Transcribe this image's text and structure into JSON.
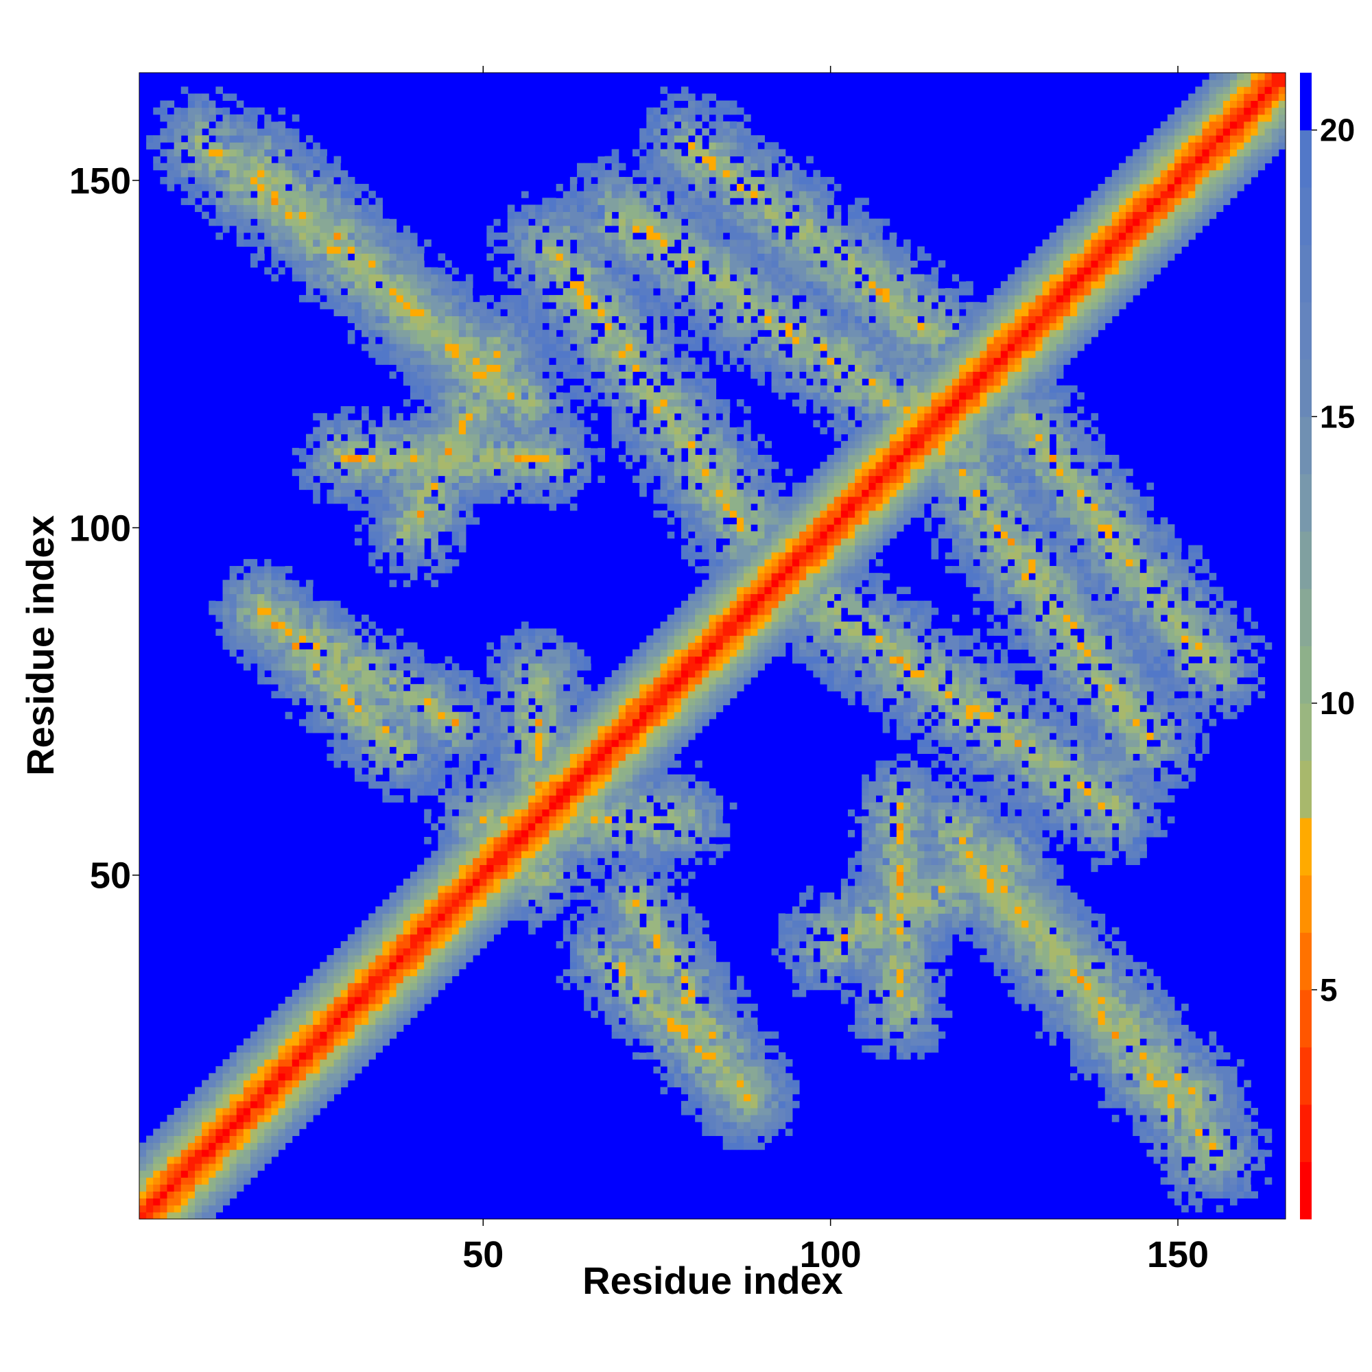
{
  "chart_data": {
    "type": "heatmap",
    "title": "",
    "xlabel": "Residue index",
    "ylabel": "Residue index",
    "n_residues": 165,
    "xlim": [
      1,
      165
    ],
    "ylim": [
      1,
      165
    ],
    "x_ticks": [
      50,
      100,
      150
    ],
    "y_ticks": [
      50,
      100,
      150
    ],
    "colorbar": {
      "range": [
        1,
        21
      ],
      "ticks": [
        5,
        10,
        15,
        20
      ],
      "levels": [
        {
          "max": 2,
          "color": "#ff0000"
        },
        {
          "max": 3,
          "color": "#ff1c00"
        },
        {
          "max": 4,
          "color": "#ff3a00"
        },
        {
          "max": 5,
          "color": "#ff5600"
        },
        {
          "max": 6,
          "color": "#ff7200"
        },
        {
          "max": 7,
          "color": "#ff9000"
        },
        {
          "max": 8,
          "color": "#ffaa00"
        },
        {
          "max": 9,
          "color": "#a8b86c"
        },
        {
          "max": 10,
          "color": "#9ab680"
        },
        {
          "max": 11,
          "color": "#8eb08a"
        },
        {
          "max": 12,
          "color": "#88a896"
        },
        {
          "max": 13,
          "color": "#80a0a0"
        },
        {
          "max": 14,
          "color": "#7898ac"
        },
        {
          "max": 15,
          "color": "#7090b2"
        },
        {
          "max": 16,
          "color": "#6888b8"
        },
        {
          "max": 17,
          "color": "#6484be"
        },
        {
          "max": 18,
          "color": "#5e80c0"
        },
        {
          "max": 19,
          "color": "#587cc4"
        },
        {
          "max": 20,
          "color": "#5278c8"
        },
        {
          "max": 21,
          "color": "#0000ff"
        }
      ]
    },
    "contact_bands": [
      {
        "label": "main diagonal",
        "center": [
          [
            1,
            1
          ],
          [
            165,
            165
          ]
        ],
        "width": 7
      },
      {
        "label": "antiparallel band",
        "center": [
          [
            10,
            155
          ],
          [
            56,
            118
          ]
        ],
        "width": 9
      },
      {
        "label": "antiparallel band",
        "center": [
          [
            18,
            88
          ],
          [
            46,
            72
          ]
        ],
        "width": 8
      },
      {
        "label": "antiparallel band",
        "center": [
          [
            68,
            38
          ],
          [
            88,
            18
          ]
        ],
        "width": 8
      },
      {
        "label": "antiparallel band",
        "center": [
          [
            70,
            145
          ],
          [
            118,
            112
          ]
        ],
        "width": 10
      },
      {
        "label": "antiparallel band",
        "center": [
          [
            100,
            88
          ],
          [
            140,
            60
          ]
        ],
        "width": 10
      },
      {
        "label": "antiparallel band",
        "center": [
          [
            122,
            50
          ],
          [
            152,
            18
          ]
        ],
        "width": 9
      },
      {
        "label": "antiparallel band",
        "center": [
          [
            128,
            115
          ],
          [
            155,
            80
          ]
        ],
        "width": 9
      },
      {
        "label": "scattered region",
        "center": [
          [
            30,
            110
          ],
          [
            60,
            110
          ]
        ],
        "width": 8
      },
      {
        "label": "scattered region",
        "center": [
          [
            50,
            58
          ],
          [
            78,
            58
          ]
        ],
        "width": 9
      },
      {
        "label": "scattered region",
        "center": [
          [
            100,
            40
          ],
          [
            125,
            52
          ]
        ],
        "width": 9
      }
    ]
  }
}
